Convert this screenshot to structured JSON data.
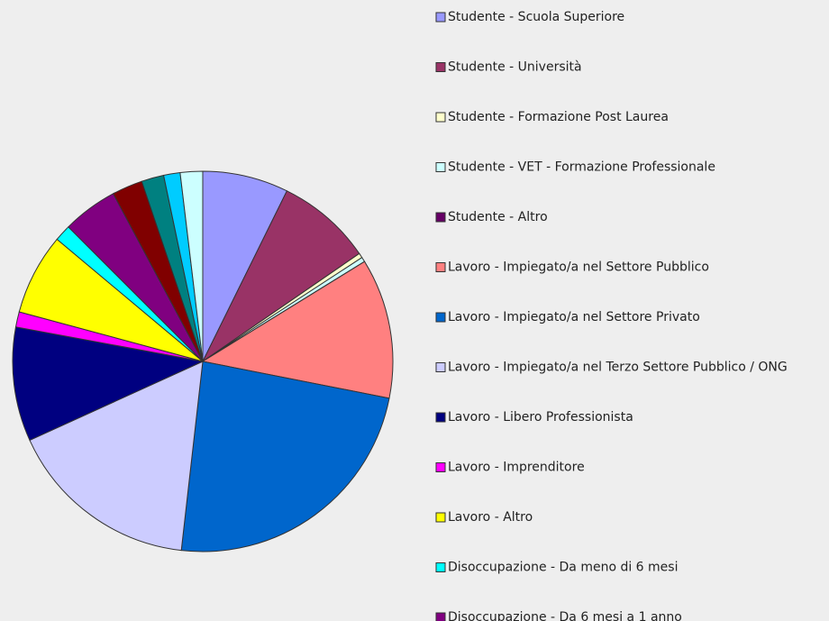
{
  "chart_data": {
    "type": "pie",
    "categories": [
      "Studente - Scuola Superiore",
      "Studente - Università",
      "Studente - Formazione Post Laurea",
      "Studente - VET - Formazione Professionale",
      "Studente - Altro",
      "Lavoro - Impiegato/a nel Settore Pubblico",
      "Lavoro - Impiegato/a nel Settore Privato",
      "Lavoro - Impiegato/a nel Terzo Settore Pubblico / ONG",
      "Lavoro - Libero Professionista",
      "Lavoro - Imprenditore",
      "Lavoro - Altro",
      "Disoccupazione - Da meno di 6 mesi",
      "Disoccupazione - Da 6 mesi a 1 anno",
      null,
      null,
      null,
      null
    ],
    "values": [
      7.3,
      8.1,
      0.4,
      0.4,
      0,
      11.9,
      23.7,
      16.4,
      9.7,
      1.3,
      6.9,
      1.4,
      4.7,
      2.6,
      1.9,
      1.4,
      1.9
    ],
    "colors": [
      "#9999ff",
      "#993366",
      "#ffffcc",
      "#ccffff",
      "#660066",
      "#ff8080",
      "#0066cc",
      "#ccccff",
      "#000080",
      "#ff00ff",
      "#ffff00",
      "#00ffff",
      "#800080",
      "#800000",
      "#008080",
      "#00ccff",
      "#ccffff"
    ]
  }
}
